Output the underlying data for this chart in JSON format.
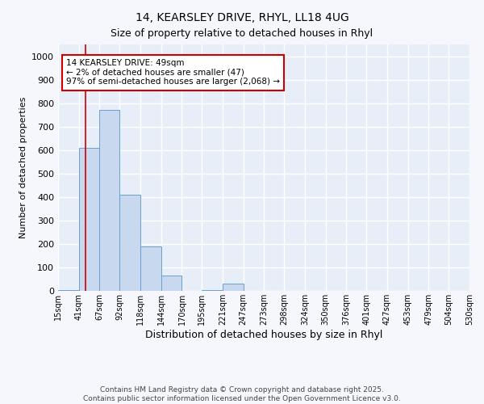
{
  "title_line1": "14, KEARSLEY DRIVE, RHYL, LL18 4UG",
  "title_line2": "Size of property relative to detached houses in Rhyl",
  "xlabel": "Distribution of detached houses by size in Rhyl",
  "ylabel": "Number of detached properties",
  "bar_color": "#c8d8ee",
  "bar_edge_color": "#6a9fd0",
  "plot_bg_color": "#e8eef8",
  "fig_bg_color": "#f5f7fc",
  "grid_color": "#ffffff",
  "red_line_x": 49,
  "annotation_text": "14 KEARSLEY DRIVE: 49sqm\n← 2% of detached houses are smaller (47)\n97% of semi-detached houses are larger (2,068) →",
  "annotation_box_facecolor": "#ffffff",
  "annotation_box_edgecolor": "#cc0000",
  "footer_line1": "Contains HM Land Registry data © Crown copyright and database right 2025.",
  "footer_line2": "Contains public sector information licensed under the Open Government Licence v3.0.",
  "bin_edges": [
    15,
    41,
    67,
    92,
    118,
    144,
    170,
    195,
    221,
    247,
    273,
    298,
    324,
    350,
    376,
    401,
    427,
    453,
    479,
    504,
    530
  ],
  "bar_heights": [
    5,
    610,
    770,
    410,
    190,
    65,
    0,
    5,
    30,
    0,
    0,
    0,
    0,
    0,
    0,
    0,
    0,
    0,
    0,
    0
  ],
  "ylim": [
    0,
    1050
  ],
  "yticks": [
    0,
    100,
    200,
    300,
    400,
    500,
    600,
    700,
    800,
    900,
    1000
  ],
  "title_fontsize": 10,
  "ylabel_fontsize": 8,
  "xlabel_fontsize": 9,
  "tick_fontsize": 8,
  "xtick_fontsize": 7,
  "footer_fontsize": 6.5,
  "annotation_fontsize": 7.5
}
